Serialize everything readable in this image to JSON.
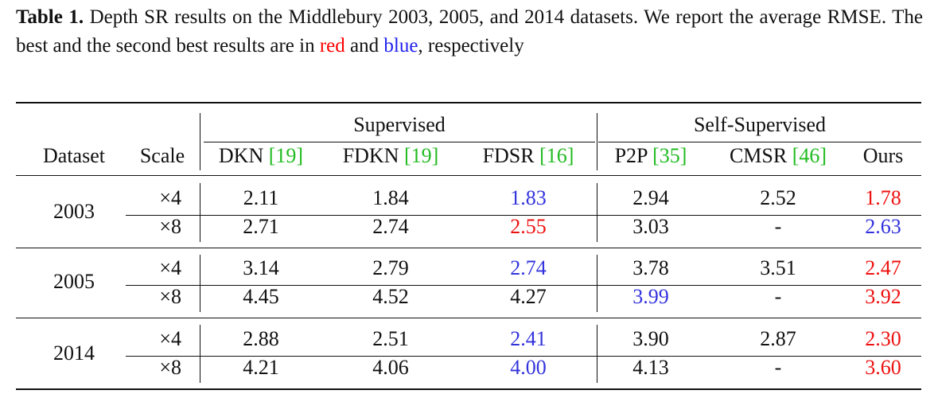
{
  "caption": {
    "label": "Table 1.",
    "text_before": " Depth SR results on the Middlebury 2003, 2005, and 2014 datasets. We report the average RMSE. The best and the second best results are in ",
    "red_word": "red",
    "and_word": " and ",
    "blue_word": "blue",
    "text_after": ", respectively"
  },
  "groups": {
    "supervised": "Supervised",
    "self_supervised": "Self-Supervised"
  },
  "headers": {
    "dataset": "Dataset",
    "scale": "Scale",
    "methods": [
      {
        "name": "DKN ",
        "cite": "[19]"
      },
      {
        "name": "FDKN ",
        "cite": "[19]"
      },
      {
        "name": "FDSR ",
        "cite": "[16]"
      },
      {
        "name": "P2P ",
        "cite": "[35]"
      },
      {
        "name": "CMSR ",
        "cite": "[46]"
      },
      {
        "name": "Ours",
        "cite": ""
      }
    ]
  },
  "rows": [
    {
      "dataset": "2003",
      "scale": "×4",
      "values": [
        "2.11",
        "1.84",
        "1.83",
        "2.94",
        "2.52",
        "1.78"
      ],
      "marks": [
        "",
        "",
        "second",
        "",
        "",
        "best"
      ]
    },
    {
      "dataset": "",
      "scale": "×8",
      "values": [
        "2.71",
        "2.74",
        "2.55",
        "3.03",
        "-",
        "2.63"
      ],
      "marks": [
        "",
        "",
        "best",
        "",
        "",
        "second"
      ]
    },
    {
      "dataset": "2005",
      "scale": "×4",
      "values": [
        "3.14",
        "2.79",
        "2.74",
        "3.78",
        "3.51",
        "2.47"
      ],
      "marks": [
        "",
        "",
        "second",
        "",
        "",
        "best"
      ]
    },
    {
      "dataset": "",
      "scale": "×8",
      "values": [
        "4.45",
        "4.52",
        "4.27",
        "3.99",
        "-",
        "3.92"
      ],
      "marks": [
        "",
        "",
        "",
        "second",
        "",
        "best"
      ]
    },
    {
      "dataset": "2014",
      "scale": "×4",
      "values": [
        "2.88",
        "2.51",
        "2.41",
        "3.90",
        "2.87",
        "2.30"
      ],
      "marks": [
        "",
        "",
        "second",
        "",
        "",
        "best"
      ]
    },
    {
      "dataset": "",
      "scale": "×8",
      "values": [
        "4.21",
        "4.06",
        "4.00",
        "4.13",
        "-",
        "3.60"
      ],
      "marks": [
        "",
        "",
        "second",
        "",
        "",
        "best"
      ]
    }
  ],
  "colors": {
    "best": "#ee1111",
    "second": "#3333dd",
    "cite": "#22bb22"
  }
}
